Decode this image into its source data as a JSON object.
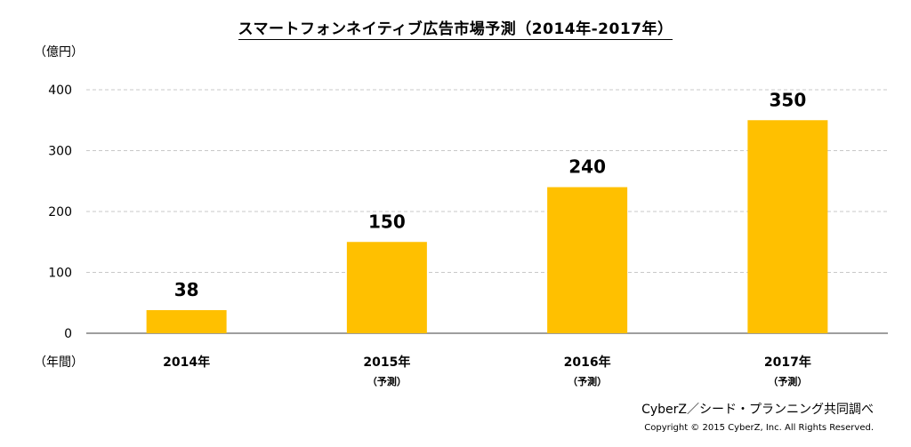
{
  "chart_data": {
    "type": "bar",
    "title": "スマートフォンネイティブ広告市場予測（2014年-2017年）",
    "ylabel": "（億円）",
    "xlabel": "（年間）",
    "ylim": [
      0,
      400
    ],
    "yticks": [
      "0",
      "100",
      "200",
      "300",
      "400"
    ],
    "categories": [
      "2014年",
      "2015年",
      "2016年",
      "2017年"
    ],
    "category_notes": [
      "",
      "（予測）",
      "（予測）",
      "（予測）"
    ],
    "values": [
      38,
      150,
      240,
      350
    ],
    "data_labels": [
      "38",
      "150",
      "240",
      "350"
    ],
    "bar_color": "#FFC000",
    "grid": true
  },
  "footer": {
    "credit": "CyberZ／シード・プランニング共同調べ",
    "copyright": "Copyright © 2015 CyberZ, Inc.  All Rights Reserved."
  }
}
